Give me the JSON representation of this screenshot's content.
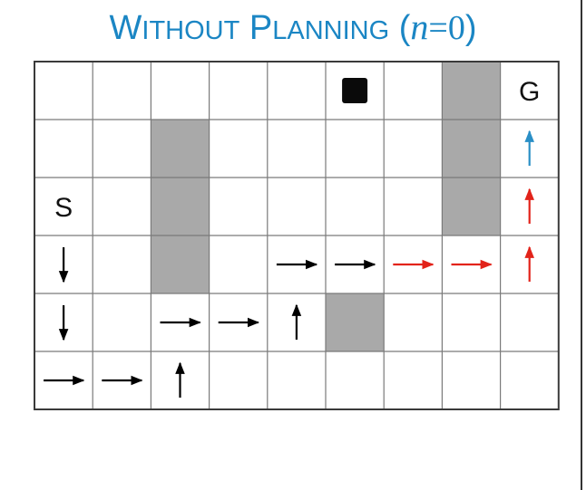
{
  "title": {
    "first_initial": "W",
    "first_rest": "ITHOUT",
    "second_initial": "P",
    "second_rest": "LANNING",
    "paren_open": "(",
    "var": "n",
    "eq": "=0",
    "paren_close": ")"
  },
  "grid": {
    "columns": 9,
    "rows": 6,
    "walls": [
      {
        "col": 7,
        "row": 0
      },
      {
        "col": 7,
        "row": 1
      },
      {
        "col": 7,
        "row": 2
      },
      {
        "col": 2,
        "row": 1
      },
      {
        "col": 2,
        "row": 2
      },
      {
        "col": 2,
        "row": 3
      },
      {
        "col": 5,
        "row": 4
      }
    ],
    "start": {
      "col": 0,
      "row": 2,
      "label": "S"
    },
    "goal": {
      "col": 8,
      "row": 0,
      "label": "G"
    },
    "agent": {
      "col": 5,
      "row": 0
    },
    "arrows": [
      {
        "col": 0,
        "row": 3,
        "dir": "down",
        "color": "black"
      },
      {
        "col": 0,
        "row": 4,
        "dir": "down",
        "color": "black"
      },
      {
        "col": 0,
        "row": 5,
        "dir": "right",
        "color": "black"
      },
      {
        "col": 1,
        "row": 5,
        "dir": "right",
        "color": "black"
      },
      {
        "col": 2,
        "row": 5,
        "dir": "up",
        "color": "black"
      },
      {
        "col": 2,
        "row": 4,
        "dir": "right",
        "color": "black"
      },
      {
        "col": 3,
        "row": 4,
        "dir": "right",
        "color": "black"
      },
      {
        "col": 4,
        "row": 4,
        "dir": "up",
        "color": "black"
      },
      {
        "col": 4,
        "row": 3,
        "dir": "right",
        "color": "black"
      },
      {
        "col": 5,
        "row": 3,
        "dir": "right",
        "color": "black"
      },
      {
        "col": 6,
        "row": 3,
        "dir": "right",
        "color": "red"
      },
      {
        "col": 7,
        "row": 3,
        "dir": "right",
        "color": "red"
      },
      {
        "col": 8,
        "row": 3,
        "dir": "up",
        "color": "red"
      },
      {
        "col": 8,
        "row": 2,
        "dir": "up",
        "color": "red"
      },
      {
        "col": 8,
        "row": 1,
        "dir": "up",
        "color": "blue"
      }
    ]
  },
  "colors": {
    "title": "#1b86c4",
    "wall": "#a9a9a9",
    "grid_line": "#7a7a7a",
    "border": "#3a3a3a",
    "black": "#000000",
    "red": "#e2231a",
    "blue": "#2a8fc6"
  }
}
